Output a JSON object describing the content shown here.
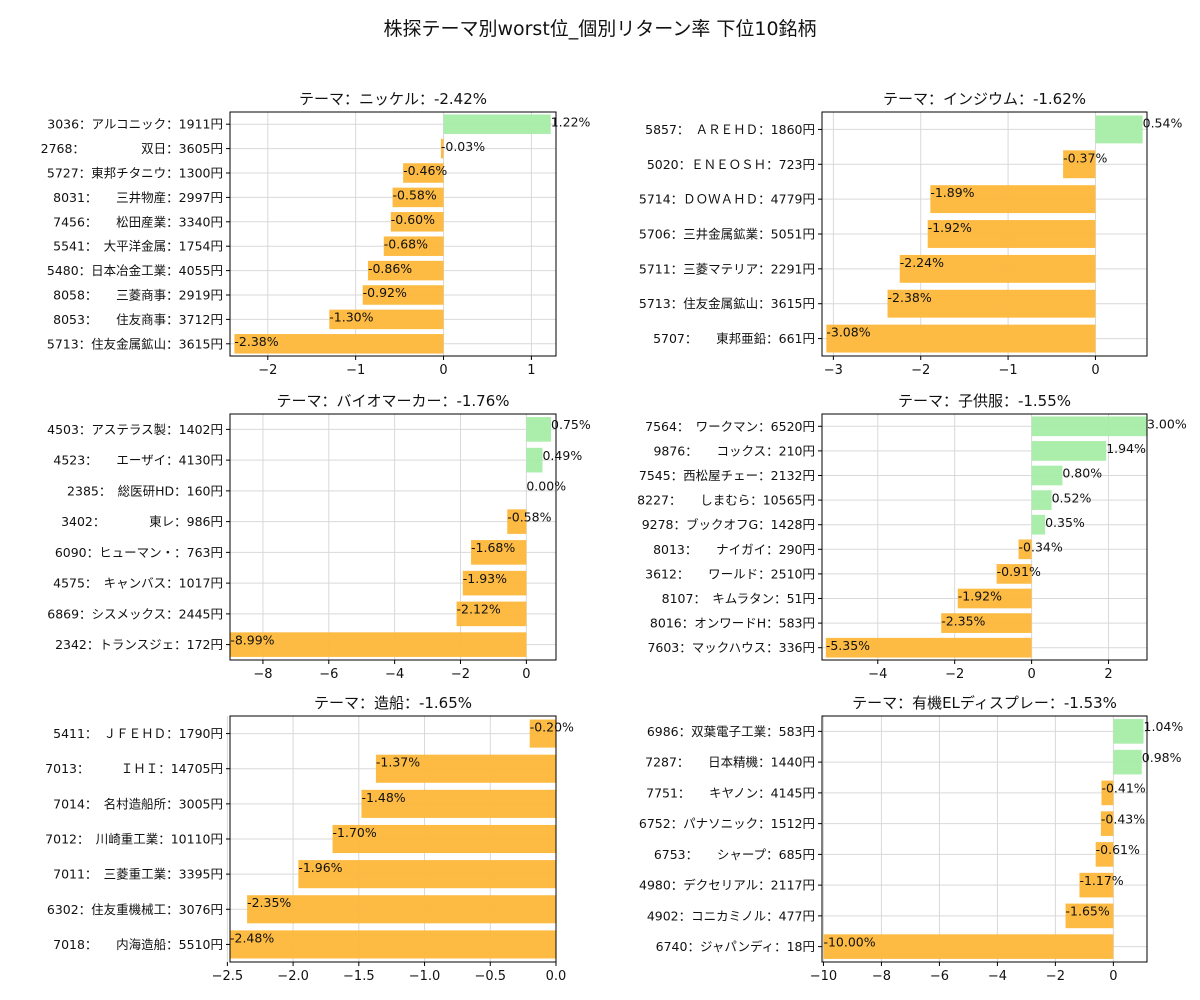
{
  "title": "株探テーマ別worst位_個別リターン率 下位10銘柄",
  "colors": {
    "positive": "#a6eca6",
    "negative": "#fdb73a",
    "grid": "#d9d9d9",
    "axis": "#000000"
  },
  "chart_data": [
    {
      "type": "bar",
      "orientation": "horizontal",
      "title": "テーマ：ニッケル：-2.42%",
      "categories": [
        "3036：アルコニック：1911円",
        "2768：　　　　　双日：3605円",
        "5727：東邦チタニウ：1300円",
        "8031：　　三井物産：2997円",
        "7456：　　松田産業：3340円",
        "5541：　大平洋金属：1754円",
        "5480：日本冶金工業：4055円",
        "8058：　　三菱商事：2919円",
        "8053：　　住友商事：3712円",
        "5713：住友金属鉱山：3615円"
      ],
      "values": [
        1.22,
        -0.03,
        -0.46,
        -0.58,
        -0.6,
        -0.68,
        -0.86,
        -0.92,
        -1.3,
        -2.38
      ],
      "value_labels": [
        "1.22%",
        "-0.03%",
        "-0.46%",
        "-0.58%",
        "-0.60%",
        "-0.68%",
        "-0.86%",
        "-0.92%",
        "-1.30%",
        "-2.38%"
      ],
      "xlim": [
        -2.43,
        1.28
      ],
      "xticks": [
        -2,
        -1,
        0,
        1
      ],
      "xtick_labels": [
        "−2",
        "−1",
        "0",
        "1"
      ],
      "grid": true
    },
    {
      "type": "bar",
      "orientation": "horizontal",
      "title": "テーマ：インジウム：-1.62%",
      "categories": [
        "5857：　ＡＲＥＨＤ：1860円",
        "5020：ＥＮＥＯＳＨ：723円",
        "5714：ＤＯＷＡＨＤ：4779円",
        "5706：三井金属鉱業：5051円",
        "5711：三菱マテリア：2291円",
        "5713：住友金属鉱山：3615円",
        "5707：　　東邦亜鉛：661円"
      ],
      "values": [
        0.54,
        -0.37,
        -1.89,
        -1.92,
        -2.24,
        -2.38,
        -3.08
      ],
      "value_labels": [
        "0.54%",
        "-0.37%",
        "-1.89%",
        "-1.92%",
        "-2.24%",
        "-2.38%",
        "-3.08%"
      ],
      "xlim": [
        -3.13,
        0.59
      ],
      "xticks": [
        -3,
        -2,
        -1,
        0
      ],
      "xtick_labels": [
        "−3",
        "−2",
        "−1",
        "0"
      ],
      "grid": true
    },
    {
      "type": "bar",
      "orientation": "horizontal",
      "title": "テーマ：バイオマーカー：-1.76%",
      "categories": [
        "4503：アステラス製：1402円",
        "4523：　　エーザイ：4130円",
        "2385：　総医研HD：160円",
        "3402：　　　　東レ：986円",
        "6090：ヒューマン・：763円",
        "4575：　キャンバス：1017円",
        "6869：シスメックス：2445円",
        "2342：トランスジェ：172円"
      ],
      "values": [
        0.75,
        0.49,
        0.0,
        -0.58,
        -1.68,
        -1.93,
        -2.12,
        -8.99
      ],
      "value_labels": [
        "0.75%",
        "0.49%",
        "0.00%",
        "-0.58%",
        "-1.68%",
        "-1.93%",
        "-2.12%",
        "-8.99%"
      ],
      "xlim": [
        -9.0,
        0.9
      ],
      "xticks": [
        -8,
        -6,
        -4,
        -2,
        0
      ],
      "xtick_labels": [
        "−8",
        "−6",
        "−4",
        "−2",
        "0"
      ],
      "grid": true
    },
    {
      "type": "bar",
      "orientation": "horizontal",
      "title": "テーマ：子供服：-1.55%",
      "categories": [
        "7564：　ワークマン：6520円",
        "9876：　　コックス：210円",
        "7545：西松屋チェー：2132円",
        "8227：　　しまむら：10565円",
        "9278：ブックオフG：1428円",
        "8013：　　ナイガイ：290円",
        "3612：　　ワールド：2510円",
        "8107：　キムラタン：51円",
        "8016：オンワードH：583円",
        "7603：マックハウス：336円"
      ],
      "values": [
        3.0,
        1.94,
        0.8,
        0.52,
        0.35,
        -0.34,
        -0.91,
        -1.92,
        -2.35,
        -5.35
      ],
      "value_labels": [
        "3.00%",
        "1.94%",
        "0.80%",
        "0.52%",
        "0.35%",
        "-0.34%",
        "-0.91%",
        "-1.92%",
        "-2.35%",
        "-5.35%"
      ],
      "xlim": [
        -5.45,
        3.0
      ],
      "xticks": [
        -4,
        -2,
        0,
        2
      ],
      "xtick_labels": [
        "−4",
        "−2",
        "0",
        "2"
      ],
      "grid": true
    },
    {
      "type": "bar",
      "orientation": "horizontal",
      "title": "テーマ：造船：-1.65%",
      "categories": [
        "5411：　ＪＦＥＨＤ：1790円",
        "7013：　　　ＩＨＩ：14705円",
        "7014：　名村造船所：3005円",
        "7012：　川崎重工業：10110円",
        "7011：　三菱重工業：3395円",
        "6302：住友重機械工：3076円",
        "7018：　　内海造船：5510円"
      ],
      "values": [
        -0.2,
        -1.37,
        -1.48,
        -1.7,
        -1.96,
        -2.35,
        -2.48
      ],
      "value_labels": [
        "-0.20%",
        "-1.37%",
        "-1.48%",
        "-1.70%",
        "-1.96%",
        "-2.35%",
        "-2.48%"
      ],
      "xlim": [
        -2.48,
        0.0
      ],
      "xticks": [
        -2.5,
        -2.0,
        -1.5,
        -1.0,
        -0.5,
        0.0
      ],
      "xtick_labels": [
        "−2.5",
        "−2.0",
        "−1.5",
        "−1.0",
        "−0.5",
        "0.0"
      ],
      "grid": true
    },
    {
      "type": "bar",
      "orientation": "horizontal",
      "title": "テーマ：有機ELディスプレー：-1.53%",
      "categories": [
        "6986：双葉電子工業：583円",
        "7287：　　日本精機：1440円",
        "7751：　　キヤノン：4145円",
        "6752：パナソニック：1512円",
        "6753：　　シャープ：685円",
        "4980：デクセリアル：2117円",
        "4902：コニカミノル：477円",
        "6740：ジャパンディ：18円"
      ],
      "values": [
        1.04,
        0.98,
        -0.41,
        -0.43,
        -0.61,
        -1.17,
        -1.65,
        -10.0
      ],
      "value_labels": [
        "1.04%",
        "0.98%",
        "-0.41%",
        "-0.43%",
        "-0.61%",
        "-1.17%",
        "-1.65%",
        "-10.00%"
      ],
      "xlim": [
        -10.05,
        1.16
      ],
      "xticks": [
        -10,
        -8,
        -6,
        -4,
        -2,
        0
      ],
      "xtick_labels": [
        "−10",
        "−8",
        "−6",
        "−4",
        "−2",
        "0"
      ],
      "grid": true
    }
  ]
}
